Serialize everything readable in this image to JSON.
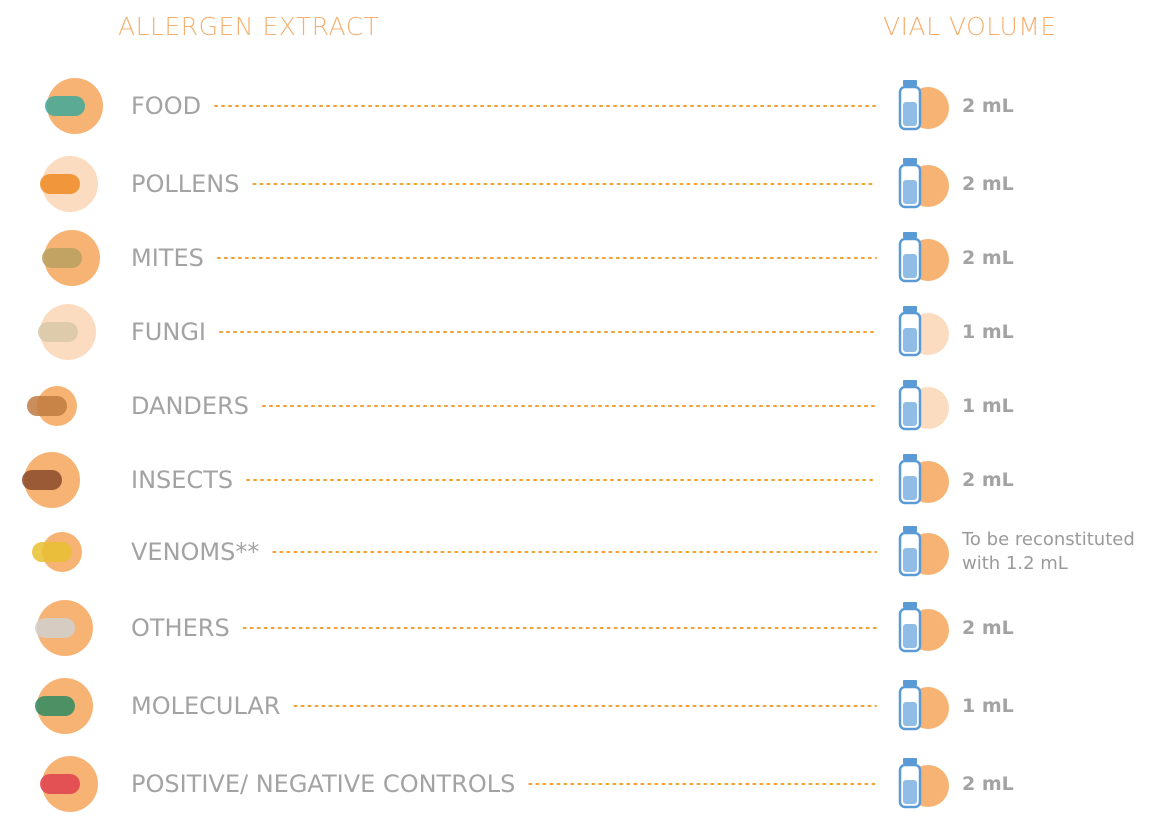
{
  "header": {
    "extract": "ALLERGEN EXTRACT",
    "volume": "VIAL VOLUME"
  },
  "rows": [
    {
      "name": "FOOD",
      "volume": "2 mL"
    },
    {
      "name": "POLLENS",
      "volume": "2 mL"
    },
    {
      "name": "MITES",
      "volume": "2 mL"
    },
    {
      "name": "FUNGI",
      "volume": "1 mL"
    },
    {
      "name": "DANDERS",
      "volume": "1 mL"
    },
    {
      "name": "INSECTS",
      "volume": "2 mL"
    },
    {
      "name": "VENOMS**",
      "volume": "To be reconstituted with 1.2 mL"
    },
    {
      "name": "OTHERS",
      "volume": "2 mL"
    },
    {
      "name": "MOLECULAR",
      "volume": "1 mL"
    },
    {
      "name": "POSITIVE/ NEGATIVE CONTROLS",
      "volume": "2 mL"
    }
  ]
}
